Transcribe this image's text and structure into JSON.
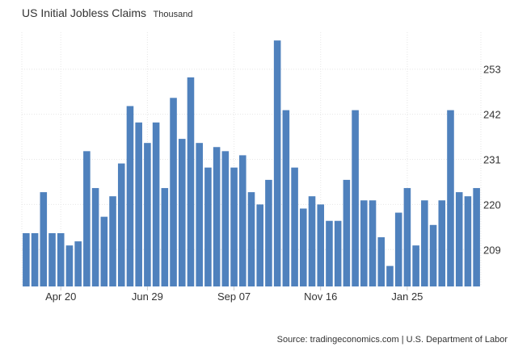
{
  "chart_data": {
    "type": "bar",
    "title": "US Initial Jobless Claims",
    "unit": "Thousand",
    "source": "Source: tradingeconomics.com | U.S. Department of Labor",
    "bar_color": "#4f81bd",
    "grid": true,
    "ylim": [
      200,
      262
    ],
    "yticks": [
      209,
      220,
      231,
      242,
      253
    ],
    "xtick_labels": [
      {
        "index": 4,
        "label": "Apr 20"
      },
      {
        "index": 14,
        "label": "Jun 29"
      },
      {
        "index": 24,
        "label": "Sep 07"
      },
      {
        "index": 34,
        "label": "Nov 16"
      },
      {
        "index": 44,
        "label": "Jan 25"
      }
    ],
    "values": [
      213,
      213,
      223,
      213,
      213,
      210,
      211,
      233,
      224,
      217,
      222,
      230,
      244,
      240,
      235,
      240,
      224,
      246,
      236,
      251,
      235,
      229,
      234,
      233,
      229,
      232,
      223,
      220,
      226,
      260,
      243,
      229,
      219,
      222,
      220,
      216,
      216,
      226,
      243,
      221,
      221,
      212,
      205,
      218,
      224,
      210,
      221,
      215,
      221,
      243,
      223,
      222,
      224
    ]
  }
}
